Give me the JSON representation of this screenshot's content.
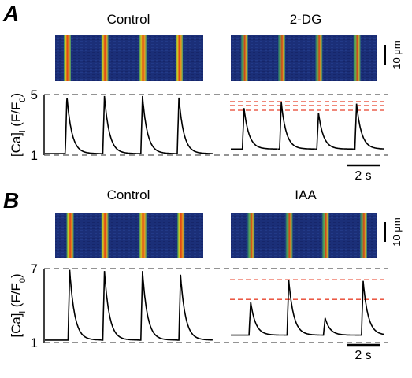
{
  "chart_data": [
    {
      "type": "line",
      "label": "A",
      "ylabel": [
        "[Ca]",
        "i",
        " (F/F",
        "0",
        ")"
      ],
      "ylim": [
        1,
        5
      ],
      "yticks": [
        1,
        5
      ],
      "space_scalebar": {
        "value": 10,
        "label": "10 μm"
      },
      "time_scalebar": {
        "value": 2,
        "label": "2 s"
      },
      "series": [
        {
          "name": "Control",
          "color": "#000000",
          "baseline": 1.1,
          "x": [
            1.33,
            3.6,
            5.9,
            8.1
          ],
          "values": [
            4.9,
            4.9,
            4.9,
            4.8
          ]
        },
        {
          "name": "2-DG",
          "color": "#000000",
          "baseline": 1.4,
          "x": [
            0.8,
            3.05,
            5.3,
            7.6
          ],
          "values": [
            4.1,
            4.5,
            3.8,
            4.4
          ],
          "reference_lines": [
            4.53,
            4.27,
            3.96
          ],
          "reference_color": "#e8402a"
        }
      ]
    },
    {
      "type": "line",
      "label": "B",
      "ylabel": [
        "[Ca]",
        "i",
        " (F/F",
        "0",
        ")"
      ],
      "ylim": [
        1,
        7
      ],
      "yticks": [
        1,
        7
      ],
      "space_scalebar": {
        "value": 10,
        "label": "10 μm"
      },
      "time_scalebar": {
        "value": 2,
        "label": "2 s"
      },
      "series": [
        {
          "name": "Control",
          "color": "#000000",
          "baseline": 1.2,
          "x": [
            1.5,
            3.6,
            5.9,
            8.2
          ],
          "values": [
            6.9,
            6.8,
            6.8,
            6.5
          ]
        },
        {
          "name": "IAA",
          "color": "#000000",
          "baseline": 1.6,
          "x": [
            1.2,
            3.5,
            5.7,
            8.0
          ],
          "values": [
            4.3,
            6.1,
            3.0,
            6.0
          ],
          "reference_lines": [
            6.1,
            4.5
          ],
          "reference_color": "#e8402a"
        }
      ]
    }
  ]
}
